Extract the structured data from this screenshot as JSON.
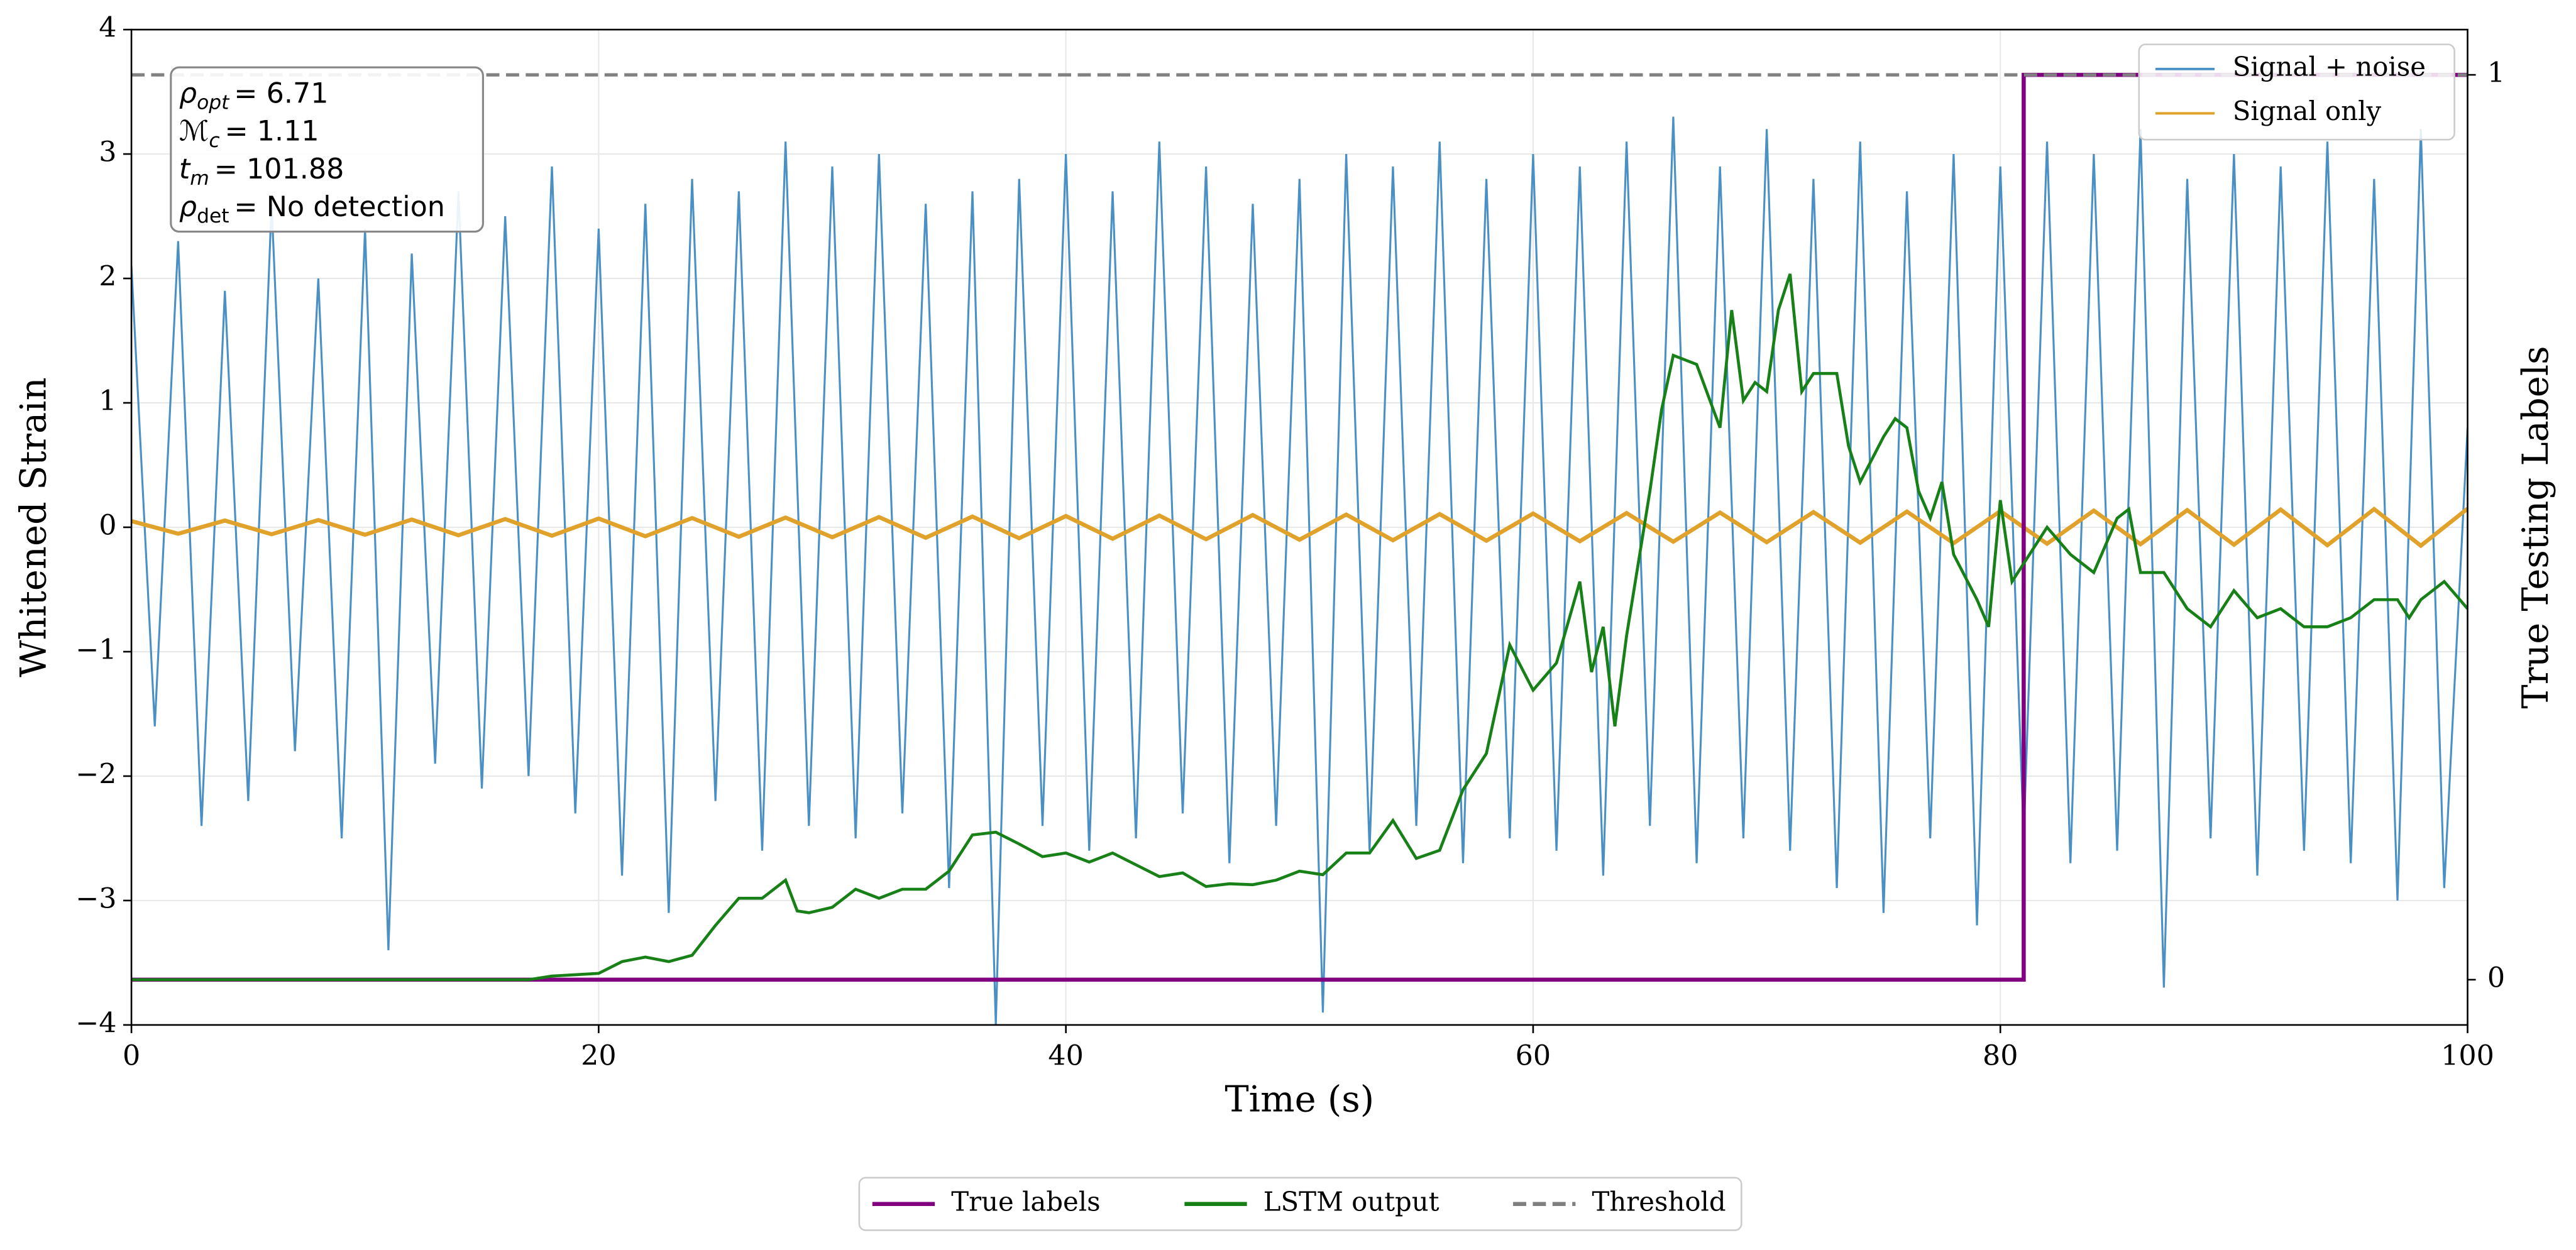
{
  "chart_data": {
    "type": "line",
    "xlabel": "Time (s)",
    "ylabel": "Whitened Strain",
    "y2label": "True Testing Labels",
    "xlim": [
      0,
      100
    ],
    "xticks": [
      0,
      20,
      40,
      60,
      80,
      100
    ],
    "ylim": [
      -4,
      4
    ],
    "yticks": [
      -4,
      -3,
      -2,
      -1,
      0,
      1,
      2,
      3,
      4
    ],
    "y2lim": [
      -0.05,
      1.05
    ],
    "y2ticks": [
      0,
      1
    ],
    "grid": true,
    "annotations": [
      {
        "symbol": "ρ",
        "sub": "opt",
        "text": "= 6.71"
      },
      {
        "symbol": "ℳ",
        "sub": "c",
        "text": "= 1.11"
      },
      {
        "symbol": "t",
        "sub": "m",
        "text": "= 101.88"
      },
      {
        "symbol": "ρ",
        "sub": "det",
        "text": "= No detection"
      }
    ],
    "series": [
      {
        "name": "Signal + noise",
        "color": "#4a90c4",
        "legend": "upper right",
        "x": [
          0,
          1,
          2,
          3,
          4,
          5,
          6,
          7,
          8,
          9,
          10,
          11,
          12,
          13,
          14,
          15,
          16,
          17,
          18,
          19,
          20,
          21,
          22,
          23,
          24,
          25,
          26,
          27,
          28,
          29,
          30,
          31,
          32,
          33,
          34,
          35,
          36,
          37,
          38,
          39,
          40,
          41,
          42,
          43,
          44,
          45,
          46,
          47,
          48,
          49,
          50,
          51,
          52,
          53,
          54,
          55,
          56,
          57,
          58,
          59,
          60,
          61,
          62,
          63,
          64,
          65,
          66,
          67,
          68,
          69,
          70,
          71,
          72,
          73,
          74,
          75,
          76,
          77,
          78,
          79,
          80,
          81,
          82,
          83,
          84,
          85,
          86,
          87,
          88,
          89,
          90,
          91,
          92,
          93,
          94,
          95,
          96,
          97,
          98,
          99,
          100
        ],
        "values": [
          2.1,
          -1.6,
          2.3,
          -2.4,
          1.9,
          -2.2,
          2.6,
          -1.8,
          2.0,
          -2.5,
          2.4,
          -3.4,
          2.2,
          -1.9,
          2.7,
          -2.1,
          2.5,
          -2.0,
          2.9,
          -2.3,
          2.4,
          -2.8,
          2.6,
          -3.1,
          2.8,
          -2.2,
          2.7,
          -2.6,
          3.1,
          -2.4,
          2.9,
          -2.5,
          3.0,
          -2.3,
          2.6,
          -2.9,
          2.7,
          -4.0,
          2.8,
          -2.4,
          3.0,
          -2.6,
          2.7,
          -2.5,
          3.1,
          -2.3,
          2.9,
          -2.7,
          2.6,
          -2.4,
          2.8,
          -3.9,
          3.0,
          -2.6,
          2.9,
          -2.4,
          3.1,
          -2.7,
          2.8,
          -2.5,
          3.0,
          -2.6,
          2.9,
          -2.8,
          3.1,
          -2.4,
          3.3,
          -2.7,
          2.9,
          -2.5,
          3.2,
          -2.6,
          2.8,
          -2.9,
          3.1,
          -3.1,
          2.7,
          -2.5,
          3.0,
          -3.2,
          2.9,
          -2.5,
          3.1,
          -2.7,
          3.0,
          -2.6,
          3.2,
          -3.7,
          2.8,
          -2.5,
          3.0,
          -2.8,
          2.9,
          -2.6,
          3.1,
          -2.7,
          2.8,
          -3.0,
          3.2,
          -2.9,
          0.8
        ]
      },
      {
        "name": "Signal only",
        "color": "#e0a22a",
        "legend": "upper right",
        "x": [
          0,
          2,
          4,
          6,
          8,
          10,
          12,
          14,
          16,
          18,
          20,
          22,
          24,
          26,
          28,
          30,
          32,
          34,
          36,
          38,
          40,
          42,
          44,
          46,
          48,
          50,
          52,
          54,
          56,
          58,
          60,
          62,
          64,
          66,
          68,
          70,
          72,
          74,
          76,
          78,
          80,
          82,
          84,
          86,
          88,
          90,
          92,
          94,
          96,
          98,
          100
        ],
        "values": [
          0.05,
          -0.052,
          0.054,
          -0.056,
          0.058,
          -0.06,
          0.062,
          -0.064,
          0.066,
          -0.068,
          0.07,
          -0.072,
          0.074,
          -0.076,
          0.078,
          -0.08,
          0.082,
          -0.084,
          0.086,
          -0.088,
          0.09,
          -0.092,
          0.094,
          -0.096,
          0.098,
          -0.1,
          0.102,
          -0.104,
          0.106,
          -0.108,
          0.11,
          -0.112,
          0.114,
          -0.116,
          0.118,
          -0.12,
          0.122,
          -0.124,
          0.126,
          -0.128,
          0.13,
          -0.132,
          0.134,
          -0.136,
          0.138,
          -0.14,
          0.142,
          -0.144,
          0.146,
          -0.148,
          0.15
        ]
      },
      {
        "name": "True labels",
        "color": "#800080",
        "legend": "lower center",
        "axis": "y2",
        "x": [
          0,
          81,
          81,
          100
        ],
        "values": [
          0,
          0,
          1,
          1
        ]
      },
      {
        "name": "LSTM output",
        "color": "#178017",
        "legend": "lower center",
        "axis": "y2",
        "x": [
          0,
          17,
          18,
          20,
          21,
          22,
          23,
          24,
          25,
          26,
          27,
          28,
          28.5,
          29,
          30,
          31,
          32,
          33,
          34,
          35,
          36,
          37,
          38,
          39,
          40,
          41,
          42,
          43,
          44,
          45,
          46,
          47,
          48,
          49,
          50,
          51,
          52,
          53,
          54,
          55,
          56,
          57,
          58,
          59,
          60,
          61,
          62,
          62.5,
          63,
          63.5,
          64,
          65,
          65.5,
          66,
          67,
          68,
          68.5,
          69,
          69.5,
          70,
          70.5,
          71,
          71.5,
          72,
          73,
          73.5,
          74,
          75,
          75.5,
          76,
          76.5,
          77,
          77.5,
          78,
          79,
          79.5,
          80,
          80.5,
          81,
          82,
          83,
          84,
          85,
          85.5,
          86,
          87,
          88,
          89,
          90,
          91,
          92,
          93,
          94,
          95,
          96,
          97,
          97.5,
          98,
          99,
          100
        ],
        "values": [
          0,
          0,
          0.004,
          0.007,
          0.02,
          0.025,
          0.02,
          0.027,
          0.06,
          0.09,
          0.09,
          0.11,
          0.076,
          0.074,
          0.08,
          0.1,
          0.09,
          0.1,
          0.1,
          0.12,
          0.16,
          0.163,
          0.15,
          0.136,
          0.14,
          0.13,
          0.14,
          0.127,
          0.114,
          0.118,
          0.103,
          0.106,
          0.105,
          0.11,
          0.12,
          0.116,
          0.14,
          0.14,
          0.176,
          0.134,
          0.143,
          0.21,
          0.25,
          0.37,
          0.32,
          0.35,
          0.44,
          0.34,
          0.39,
          0.28,
          0.38,
          0.54,
          0.63,
          0.69,
          0.68,
          0.61,
          0.74,
          0.64,
          0.66,
          0.65,
          0.74,
          0.78,
          0.65,
          0.67,
          0.67,
          0.59,
          0.55,
          0.6,
          0.62,
          0.61,
          0.54,
          0.51,
          0.55,
          0.47,
          0.42,
          0.39,
          0.53,
          0.44,
          0.46,
          0.5,
          0.47,
          0.45,
          0.51,
          0.52,
          0.45,
          0.45,
          0.41,
          0.39,
          0.43,
          0.4,
          0.41,
          0.39,
          0.39,
          0.4,
          0.42,
          0.42,
          0.4,
          0.42,
          0.44,
          0.41
        ]
      },
      {
        "name": "Threshold",
        "color": "#808080",
        "legend": "lower center",
        "axis": "y2",
        "dash": true,
        "x": [
          0,
          100
        ],
        "values": [
          1,
          1
        ]
      }
    ]
  }
}
